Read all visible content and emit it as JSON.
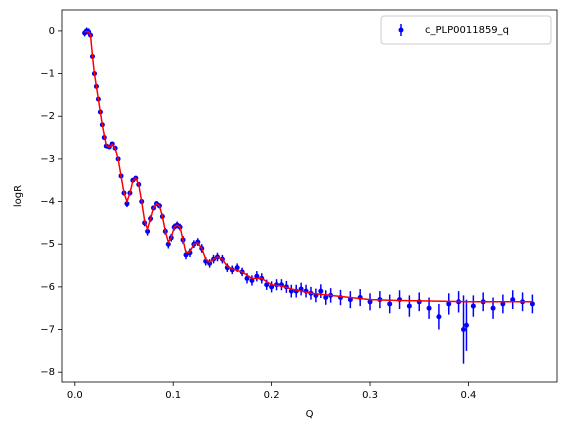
{
  "chart_data": {
    "type": "errorbar",
    "xlabel": "Q",
    "ylabel": "logR",
    "xlim": [
      -0.013,
      0.49
    ],
    "ylim": [
      -8.23,
      0.49
    ],
    "xticks": [
      {
        "value": 0,
        "label": "0.0"
      },
      0.1,
      0.2,
      0.3,
      0.4
    ],
    "yticks": [
      {
        "value": -8,
        "label": "−8"
      },
      {
        "value": -7,
        "label": "−7"
      },
      {
        "value": -6,
        "label": "−6"
      },
      {
        "value": -5,
        "label": "−5"
      },
      {
        "value": -4,
        "label": "−4"
      },
      {
        "value": -3,
        "label": "−3"
      },
      {
        "value": -2,
        "label": "−2"
      },
      {
        "value": -1,
        "label": "−1"
      },
      0
    ],
    "legend": "upper right",
    "series": [
      {
        "name": "c_PLP0011859_q",
        "type": "errorbar",
        "color": "#0000ff",
        "x": [
          0.01,
          0.012,
          0.014,
          0.016,
          0.018,
          0.02,
          0.022,
          0.024,
          0.026,
          0.028,
          0.03,
          0.032,
          0.035,
          0.038,
          0.041,
          0.044,
          0.047,
          0.05,
          0.053,
          0.056,
          0.059,
          0.062,
          0.065,
          0.068,
          0.071,
          0.074,
          0.077,
          0.08,
          0.083,
          0.086,
          0.089,
          0.092,
          0.095,
          0.098,
          0.101,
          0.104,
          0.107,
          0.11,
          0.113,
          0.117,
          0.121,
          0.125,
          0.129,
          0.133,
          0.137,
          0.141,
          0.145,
          0.15,
          0.155,
          0.16,
          0.165,
          0.17,
          0.175,
          0.18,
          0.185,
          0.19,
          0.195,
          0.2,
          0.205,
          0.21,
          0.215,
          0.22,
          0.225,
          0.23,
          0.235,
          0.24,
          0.245,
          0.25,
          0.255,
          0.26,
          0.27,
          0.28,
          0.29,
          0.3,
          0.31,
          0.32,
          0.33,
          0.34,
          0.35,
          0.36,
          0.37,
          0.38,
          0.39,
          0.395,
          0.398,
          0.405,
          0.415,
          0.425,
          0.435,
          0.445,
          0.455,
          0.465
        ],
        "values": [
          -0.05,
          0.0,
          -0.02,
          -0.1,
          -0.6,
          -1.0,
          -1.3,
          -1.6,
          -1.9,
          -2.2,
          -2.5,
          -2.7,
          -2.72,
          -2.65,
          -2.75,
          -3.0,
          -3.4,
          -3.8,
          -4.05,
          -3.8,
          -3.5,
          -3.45,
          -3.6,
          -4.0,
          -4.5,
          -4.7,
          -4.4,
          -4.15,
          -4.05,
          -4.1,
          -4.35,
          -4.7,
          -5.0,
          -4.85,
          -4.6,
          -4.55,
          -4.6,
          -4.9,
          -5.25,
          -5.2,
          -5.0,
          -4.95,
          -5.1,
          -5.4,
          -5.45,
          -5.35,
          -5.3,
          -5.35,
          -5.55,
          -5.6,
          -5.55,
          -5.65,
          -5.8,
          -5.85,
          -5.75,
          -5.8,
          -5.95,
          -6.0,
          -5.95,
          -5.95,
          -6.0,
          -6.1,
          -6.1,
          -6.05,
          -6.1,
          -6.15,
          -6.2,
          -6.1,
          -6.25,
          -6.2,
          -6.25,
          -6.3,
          -6.25,
          -6.35,
          -6.3,
          -6.4,
          -6.3,
          -6.45,
          -6.35,
          -6.5,
          -6.7,
          -6.4,
          -6.35,
          -7.0,
          -6.9,
          -6.45,
          -6.35,
          -6.5,
          -6.4,
          -6.3,
          -6.35,
          -6.4
        ],
        "errors": [
          0.08,
          0.08,
          0.08,
          0.06,
          0.04,
          0.03,
          0.03,
          0.03,
          0.03,
          0.03,
          0.03,
          0.03,
          0.04,
          0.04,
          0.04,
          0.04,
          0.05,
          0.06,
          0.08,
          0.06,
          0.05,
          0.05,
          0.05,
          0.06,
          0.08,
          0.1,
          0.08,
          0.06,
          0.06,
          0.06,
          0.07,
          0.08,
          0.1,
          0.09,
          0.08,
          0.08,
          0.08,
          0.09,
          0.1,
          0.1,
          0.09,
          0.09,
          0.1,
          0.1,
          0.1,
          0.1,
          0.1,
          0.1,
          0.1,
          0.1,
          0.1,
          0.1,
          0.12,
          0.12,
          0.12,
          0.12,
          0.12,
          0.13,
          0.13,
          0.13,
          0.14,
          0.15,
          0.15,
          0.15,
          0.15,
          0.15,
          0.16,
          0.16,
          0.17,
          0.17,
          0.18,
          0.2,
          0.2,
          0.2,
          0.2,
          0.22,
          0.22,
          0.25,
          0.22,
          0.25,
          0.3,
          0.25,
          0.25,
          0.8,
          0.6,
          0.25,
          0.22,
          0.25,
          0.22,
          0.22,
          0.22,
          0.22
        ]
      },
      {
        "type": "line",
        "color": "#ff0000",
        "x": [
          0.01,
          0.014,
          0.016,
          0.018,
          0.02,
          0.024,
          0.028,
          0.032,
          0.035,
          0.038,
          0.041,
          0.044,
          0.047,
          0.05,
          0.053,
          0.056,
          0.059,
          0.062,
          0.065,
          0.068,
          0.071,
          0.074,
          0.077,
          0.08,
          0.083,
          0.086,
          0.089,
          0.092,
          0.095,
          0.098,
          0.101,
          0.104,
          0.107,
          0.11,
          0.113,
          0.117,
          0.121,
          0.125,
          0.129,
          0.133,
          0.137,
          0.141,
          0.145,
          0.15,
          0.155,
          0.16,
          0.17,
          0.18,
          0.19,
          0.2,
          0.21,
          0.22,
          0.24,
          0.26,
          0.28,
          0.3,
          0.33,
          0.36,
          0.4,
          0.44,
          0.465
        ],
        "values": [
          -0.02,
          -0.02,
          -0.1,
          -0.6,
          -1.0,
          -1.6,
          -2.2,
          -2.68,
          -2.72,
          -2.66,
          -2.76,
          -3.0,
          -3.4,
          -3.8,
          -4.0,
          -3.8,
          -3.52,
          -3.45,
          -3.6,
          -4.0,
          -4.45,
          -4.65,
          -4.4,
          -4.15,
          -4.05,
          -4.1,
          -4.35,
          -4.7,
          -4.95,
          -4.85,
          -4.6,
          -4.55,
          -4.6,
          -4.9,
          -5.2,
          -5.18,
          -5.0,
          -4.97,
          -5.1,
          -5.35,
          -5.42,
          -5.35,
          -5.3,
          -5.35,
          -5.52,
          -5.58,
          -5.65,
          -5.8,
          -5.8,
          -5.95,
          -5.98,
          -6.05,
          -6.15,
          -6.2,
          -6.25,
          -6.3,
          -6.32,
          -6.33,
          -6.35,
          -6.35,
          -6.35
        ]
      }
    ]
  }
}
